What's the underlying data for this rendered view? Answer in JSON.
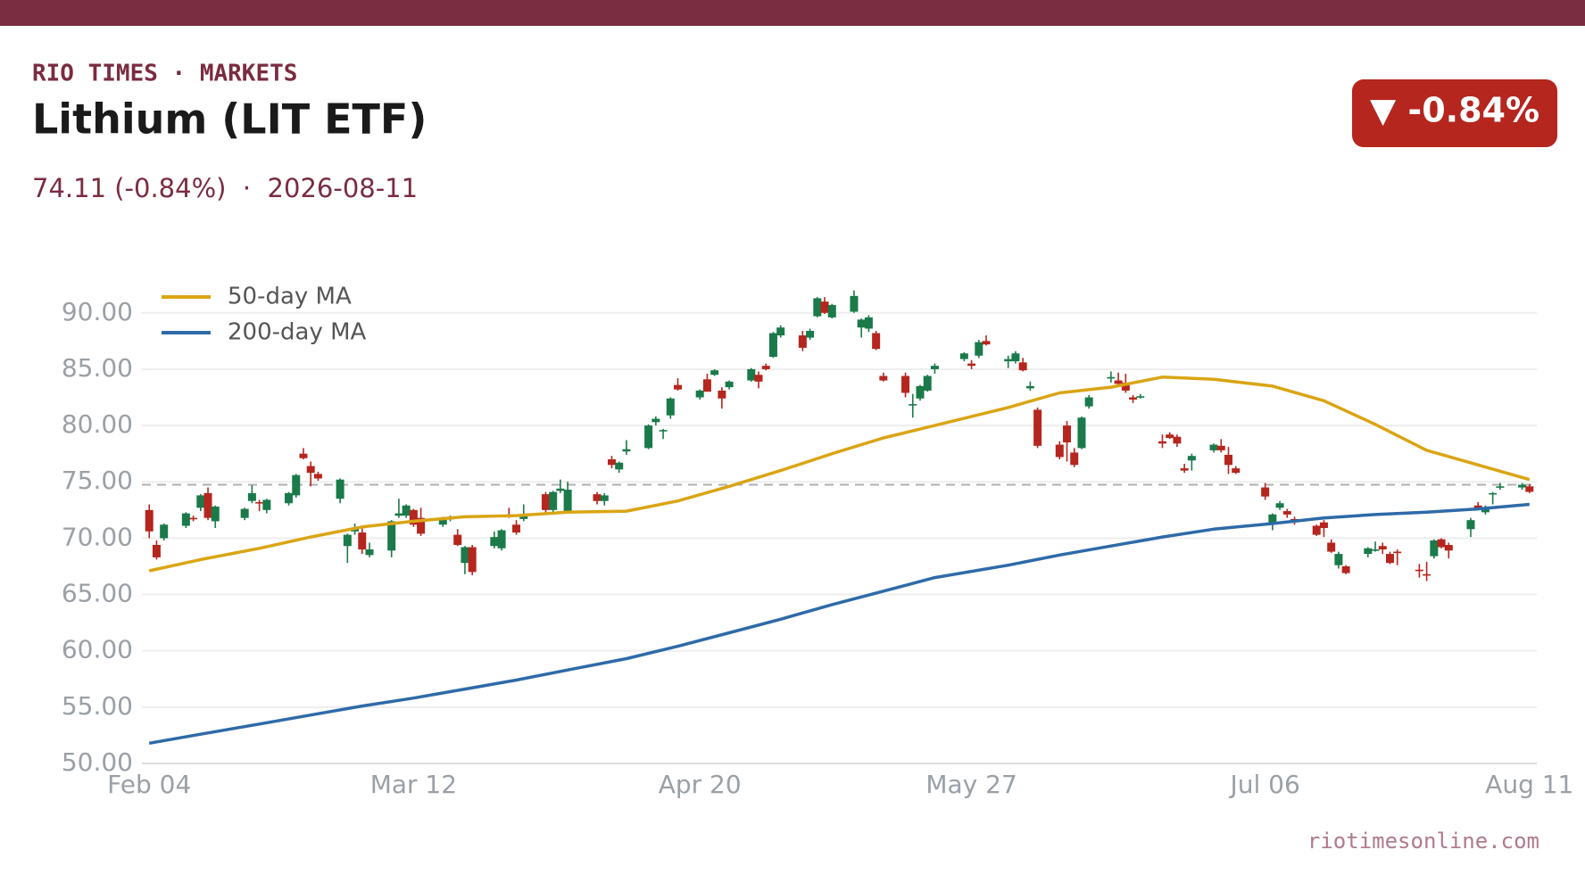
{
  "header": {
    "brand": "RIO TIMES · MARKETS",
    "title": "Lithium (LIT ETF)",
    "subtitle": "74.11 (-0.84%)  ·  2026-08-11",
    "badge": "▼ -0.84%"
  },
  "footer": "riotimesonline.com",
  "chart_data": {
    "type": "candlestick",
    "up_color": "#1a7a4a",
    "down_color": "#b5261e",
    "grid": true,
    "reference_line": 74.74,
    "ylim": [
      50,
      92.2
    ],
    "yticks": [
      {
        "value": 50,
        "label": "50.00"
      },
      {
        "value": 55,
        "label": "55.00"
      },
      {
        "value": 60,
        "label": "60.00"
      },
      {
        "value": 65,
        "label": "65.00"
      },
      {
        "value": 70,
        "label": "70.00"
      },
      {
        "value": 75,
        "label": "75.00"
      },
      {
        "value": 80,
        "label": "80.00"
      },
      {
        "value": 85,
        "label": "85.00"
      },
      {
        "value": 90,
        "label": "90.00"
      }
    ],
    "xlim": [
      "2026-02-03",
      "2026-08-12"
    ],
    "xticks": [
      {
        "value": "2026-02-04",
        "label": "Feb 04"
      },
      {
        "value": "2026-03-12",
        "label": "Mar 12"
      },
      {
        "value": "2026-04-20",
        "label": "Apr 20"
      },
      {
        "value": "2026-05-27",
        "label": "May 27"
      },
      {
        "value": "2026-07-06",
        "label": "Jul 06"
      },
      {
        "value": "2026-08-11",
        "label": "Aug 11"
      }
    ],
    "x": [
      "2026-02-04",
      "2026-02-05",
      "2026-02-06",
      "2026-02-09",
      "2026-02-10",
      "2026-02-11",
      "2026-02-12",
      "2026-02-13",
      "2026-02-17",
      "2026-02-18",
      "2026-02-19",
      "2026-02-20",
      "2026-02-23",
      "2026-02-24",
      "2026-02-25",
      "2026-02-26",
      "2026-02-27",
      "2026-03-02",
      "2026-03-03",
      "2026-03-04",
      "2026-03-05",
      "2026-03-06",
      "2026-03-09",
      "2026-03-10",
      "2026-03-11",
      "2026-03-12",
      "2026-03-13",
      "2026-03-16",
      "2026-03-17",
      "2026-03-18",
      "2026-03-19",
      "2026-03-20",
      "2026-03-23",
      "2026-03-24",
      "2026-03-25",
      "2026-03-26",
      "2026-03-27",
      "2026-03-30",
      "2026-03-31",
      "2026-04-01",
      "2026-04-02",
      "2026-04-06",
      "2026-04-07",
      "2026-04-08",
      "2026-04-09",
      "2026-04-10",
      "2026-04-13",
      "2026-04-14",
      "2026-04-15",
      "2026-04-16",
      "2026-04-17",
      "2026-04-20",
      "2026-04-21",
      "2026-04-22",
      "2026-04-23",
      "2026-04-24",
      "2026-04-27",
      "2026-04-28",
      "2026-04-29",
      "2026-04-30",
      "2026-05-01",
      "2026-05-04",
      "2026-05-05",
      "2026-05-06",
      "2026-05-07",
      "2026-05-08",
      "2026-05-11",
      "2026-05-12",
      "2026-05-13",
      "2026-05-14",
      "2026-05-15",
      "2026-05-18",
      "2026-05-19",
      "2026-05-20",
      "2026-05-21",
      "2026-05-22",
      "2026-05-26",
      "2026-05-27",
      "2026-05-28",
      "2026-05-29",
      "2026-06-01",
      "2026-06-02",
      "2026-06-03",
      "2026-06-04",
      "2026-06-05",
      "2026-06-08",
      "2026-06-09",
      "2026-06-10",
      "2026-06-11",
      "2026-06-12",
      "2026-06-15",
      "2026-06-16",
      "2026-06-17",
      "2026-06-18",
      "2026-06-19",
      "2026-06-22",
      "2026-06-23",
      "2026-06-24",
      "2026-06-25",
      "2026-06-26",
      "2026-06-29",
      "2026-06-30",
      "2026-07-01",
      "2026-07-02",
      "2026-07-06",
      "2026-07-07",
      "2026-07-08",
      "2026-07-09",
      "2026-07-10",
      "2026-07-13",
      "2026-07-14",
      "2026-07-15",
      "2026-07-16",
      "2026-07-17",
      "2026-07-20",
      "2026-07-21",
      "2026-07-22",
      "2026-07-23",
      "2026-07-24",
      "2026-07-27",
      "2026-07-28",
      "2026-07-29",
      "2026-07-30",
      "2026-07-31",
      "2026-08-03",
      "2026-08-04",
      "2026-08-05",
      "2026-08-06",
      "2026-08-07",
      "2026-08-10",
      "2026-08-11"
    ],
    "open": [
      72.5,
      69.4,
      70.0,
      71.1,
      71.8,
      72.7,
      74.0,
      71.5,
      71.8,
      73.3,
      73.2,
      72.5,
      73.1,
      73.8,
      77.5,
      76.4,
      75.7,
      73.5,
      69.3,
      70.6,
      70.5,
      68.5,
      68.9,
      72.0,
      72.0,
      72.5,
      71.8,
      71.2,
      71.7,
      70.3,
      67.8,
      69.2,
      69.3,
      69.1,
      72.1,
      71.2,
      71.7,
      73.9,
      72.5,
      74.2,
      72.4,
      73.9,
      73.3,
      77.0,
      76.1,
      77.7,
      78.0,
      80.3,
      79.5,
      80.9,
      83.6,
      82.5,
      84.1,
      84.5,
      83.1,
      83.4,
      84.0,
      84.5,
      85.3,
      86.1,
      88.0,
      88.0,
      87.8,
      89.7,
      91.0,
      89.6,
      90.1,
      88.7,
      88.6,
      88.2,
      84.4,
      84.4,
      81.8,
      82.4,
      83.1,
      85.0,
      85.9,
      85.5,
      86.2,
      87.5,
      85.7,
      85.7,
      85.6,
      83.3,
      81.4,
      78.3,
      80.0,
      77.6,
      78.0,
      81.7,
      84.2,
      84.0,
      83.8,
      82.5,
      82.5,
      78.6,
      79.2,
      79.0,
      76.2,
      76.9,
      77.8,
      78.2,
      77.4,
      76.2,
      74.5,
      71.3,
      72.7,
      72.4,
      71.7,
      71.1,
      71.4,
      69.6,
      67.6,
      67.5,
      68.6,
      68.9,
      69.3,
      68.6,
      68.8,
      67.2,
      66.8,
      68.4,
      69.9,
      69.4,
      70.8,
      72.9,
      72.3,
      73.9,
      74.5,
      74.5,
      74.6
    ],
    "high": [
      73.0,
      69.8,
      71.3,
      72.3,
      72.0,
      73.9,
      74.5,
      72.9,
      72.7,
      74.7,
      73.4,
      73.5,
      74.1,
      75.7,
      78.0,
      76.8,
      75.9,
      75.3,
      70.4,
      71.3,
      71.0,
      69.6,
      71.6,
      73.5,
      73.0,
      72.6,
      72.7,
      71.9,
      72.0,
      70.8,
      69.3,
      69.4,
      70.6,
      70.8,
      72.7,
      71.6,
      73.0,
      74.1,
      74.2,
      75.2,
      75.0,
      74.1,
      74.0,
      77.3,
      76.8,
      78.7,
      80.1,
      80.8,
      79.7,
      82.5,
      84.2,
      83.2,
      84.6,
      85.0,
      83.4,
      84.0,
      85.1,
      84.8,
      85.5,
      88.3,
      88.9,
      88.4,
      88.6,
      91.4,
      91.4,
      90.8,
      92.0,
      89.5,
      89.8,
      88.4,
      84.7,
      84.7,
      82.8,
      83.6,
      84.5,
      85.5,
      86.5,
      85.8,
      87.6,
      88.0,
      86.2,
      86.6,
      86.0,
      83.9,
      81.6,
      78.6,
      80.4,
      78.0,
      80.8,
      82.7,
      84.8,
      84.7,
      84.6,
      82.7,
      82.8,
      79.2,
      79.4,
      79.2,
      76.6,
      77.5,
      78.4,
      78.8,
      78.1,
      76.4,
      74.9,
      72.2,
      73.3,
      72.6,
      71.9,
      71.2,
      71.6,
      69.9,
      68.8,
      67.6,
      69.2,
      69.7,
      69.6,
      68.8,
      69.0,
      67.7,
      67.9,
      69.9,
      70.0,
      69.6,
      71.8,
      73.2,
      72.9,
      74.1,
      74.9,
      74.9,
      74.8
    ],
    "low": [
      70.0,
      68.1,
      69.8,
      70.9,
      71.5,
      72.4,
      71.6,
      70.9,
      71.6,
      73.1,
      72.4,
      72.2,
      72.9,
      73.6,
      77.0,
      74.6,
      75.1,
      73.1,
      67.8,
      70.3,
      68.6,
      68.3,
      68.3,
      71.8,
      71.8,
      71.0,
      70.2,
      71.0,
      71.5,
      69.3,
      66.8,
      66.7,
      69.1,
      68.9,
      71.8,
      70.3,
      71.5,
      72.2,
      72.2,
      74.0,
      72.2,
      73.0,
      72.9,
      76.2,
      75.8,
      77.4,
      77.9,
      80.0,
      78.8,
      80.6,
      83.1,
      82.3,
      83.0,
      84.4,
      81.5,
      83.2,
      83.9,
      83.3,
      84.9,
      86.0,
      87.8,
      86.6,
      87.6,
      89.6,
      89.9,
      89.5,
      90.0,
      87.8,
      88.3,
      86.7,
      83.9,
      82.5,
      80.7,
      82.2,
      83.0,
      84.6,
      85.7,
      85.0,
      86.0,
      87.1,
      85.1,
      85.5,
      84.8,
      83.1,
      78.0,
      77.0,
      76.8,
      76.3,
      77.9,
      81.5,
      83.8,
      83.4,
      82.9,
      82.0,
      82.4,
      78.0,
      78.8,
      78.1,
      75.8,
      76.0,
      77.6,
      77.6,
      75.7,
      75.7,
      73.4,
      70.7,
      72.5,
      71.8,
      71.2,
      70.2,
      70.1,
      68.7,
      67.3,
      66.8,
      68.3,
      68.8,
      68.6,
      67.7,
      67.6,
      66.5,
      66.2,
      68.2,
      69.1,
      68.2,
      70.1,
      72.5,
      72.1,
      73.0,
      74.3,
      74.3,
      74.0
    ],
    "close": [
      70.6,
      68.3,
      71.2,
      72.2,
      71.7,
      73.8,
      71.8,
      72.8,
      72.6,
      74.0,
      73.1,
      73.4,
      74.0,
      75.6,
      77.1,
      75.8,
      75.3,
      75.2,
      70.3,
      70.9,
      69.0,
      69.0,
      71.5,
      72.2,
      72.9,
      71.2,
      70.4,
      71.8,
      71.8,
      69.4,
      69.2,
      67.0,
      70.1,
      70.7,
      72.0,
      70.5,
      72.0,
      72.5,
      74.1,
      74.4,
      74.3,
      73.3,
      73.8,
      76.5,
      76.7,
      77.9,
      80.0,
      80.6,
      79.6,
      82.4,
      83.2,
      83.1,
      83.0,
      84.9,
      82.4,
      83.9,
      85.0,
      83.9,
      85.0,
      88.2,
      88.7,
      86.9,
      88.4,
      91.3,
      90.0,
      90.7,
      91.5,
      89.4,
      89.6,
      86.8,
      84.0,
      82.9,
      81.9,
      83.5,
      84.4,
      85.3,
      86.4,
      85.3,
      87.4,
      87.2,
      85.9,
      86.4,
      84.9,
      83.5,
      78.2,
      77.2,
      78.5,
      76.5,
      80.7,
      82.5,
      84.3,
      83.7,
      83.1,
      82.3,
      82.6,
      78.4,
      78.9,
      78.4,
      76.0,
      77.3,
      78.3,
      77.8,
      76.5,
      75.8,
      73.7,
      72.1,
      73.1,
      72.1,
      71.6,
      70.3,
      70.9,
      68.8,
      68.6,
      66.9,
      69.1,
      69.0,
      69.0,
      67.8,
      68.7,
      67.1,
      66.7,
      69.8,
      69.2,
      68.9,
      71.6,
      72.7,
      72.6,
      74.0,
      74.6,
      74.74,
      74.11
    ],
    "series": [
      {
        "name": "50-day MA",
        "color": "#daa514",
        "x": [
          "2026-02-04",
          "2026-02-11",
          "2026-02-19",
          "2026-02-26",
          "2026-03-05",
          "2026-03-12",
          "2026-03-19",
          "2026-03-26",
          "2026-04-02",
          "2026-04-10",
          "2026-04-17",
          "2026-04-24",
          "2026-05-01",
          "2026-05-08",
          "2026-05-15",
          "2026-05-22",
          "2026-06-01",
          "2026-06-08",
          "2026-06-15",
          "2026-06-22",
          "2026-06-29",
          "2026-07-07",
          "2026-07-14",
          "2026-07-21",
          "2026-07-28",
          "2026-08-04",
          "2026-08-11"
        ],
        "values": [
          67.1,
          68.1,
          69.1,
          70.1,
          71.0,
          71.5,
          71.9,
          72.0,
          72.3,
          72.4,
          73.3,
          74.6,
          76.0,
          77.5,
          78.9,
          80.0,
          81.6,
          82.9,
          83.4,
          84.3,
          84.1,
          83.5,
          82.2,
          80.1,
          77.8,
          76.5,
          75.2
        ]
      },
      {
        "name": "200-day MA",
        "color": "#2e6aa8",
        "x": [
          "2026-02-04",
          "2026-02-11",
          "2026-02-19",
          "2026-02-26",
          "2026-03-05",
          "2026-03-12",
          "2026-03-19",
          "2026-03-26",
          "2026-04-02",
          "2026-04-10",
          "2026-04-17",
          "2026-04-24",
          "2026-05-01",
          "2026-05-08",
          "2026-05-15",
          "2026-05-22",
          "2026-06-01",
          "2026-06-08",
          "2026-06-15",
          "2026-06-22",
          "2026-06-29",
          "2026-07-07",
          "2026-07-14",
          "2026-07-21",
          "2026-07-28",
          "2026-08-04",
          "2026-08-11"
        ],
        "values": [
          51.8,
          52.6,
          53.5,
          54.3,
          55.1,
          55.8,
          56.6,
          57.4,
          58.3,
          59.3,
          60.4,
          61.6,
          62.8,
          64.1,
          65.3,
          66.5,
          67.6,
          68.5,
          69.3,
          70.1,
          70.8,
          71.3,
          71.8,
          72.1,
          72.3,
          72.6,
          73.0
        ]
      }
    ]
  }
}
